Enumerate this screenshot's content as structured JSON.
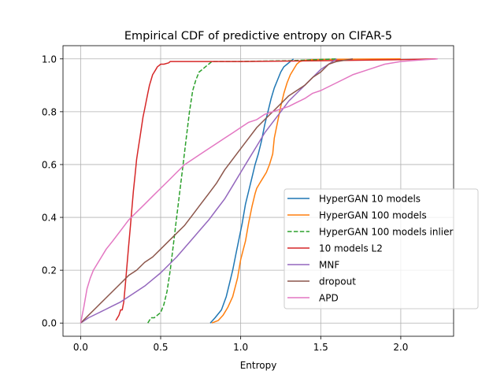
{
  "chart_data": {
    "type": "line",
    "title": "Empirical CDF of predictive entropy on CIFAR-5",
    "xlabel": "Entropy",
    "ylabel": "",
    "xlim": [
      -0.11,
      2.33
    ],
    "ylim": [
      -0.05,
      1.05
    ],
    "xticks": [
      0.0,
      0.5,
      1.0,
      1.5,
      2.0
    ],
    "xtick_labels": [
      "0.0",
      "0.5",
      "1.0",
      "1.5",
      "2.0"
    ],
    "yticks": [
      0.0,
      0.2,
      0.4,
      0.6,
      0.8,
      1.0
    ],
    "ytick_labels": [
      "0.0",
      "0.2",
      "0.4",
      "0.6",
      "0.8",
      "1.0"
    ],
    "grid": true,
    "legend_position": "lower-right",
    "series": [
      {
        "name": "HyperGAN 10 models",
        "color": "#1f77b4",
        "dash": "solid",
        "x": [
          0.81,
          0.84,
          0.88,
          0.91,
          0.93,
          0.95,
          0.97,
          0.99,
          1.01,
          1.03,
          1.05,
          1.07,
          1.09,
          1.11,
          1.13,
          1.15,
          1.17,
          1.19,
          1.21,
          1.23,
          1.25,
          1.27,
          1.29,
          1.31,
          1.33
        ],
        "y": [
          0.0,
          0.02,
          0.05,
          0.1,
          0.15,
          0.2,
          0.26,
          0.32,
          0.38,
          0.45,
          0.5,
          0.55,
          0.6,
          0.64,
          0.69,
          0.75,
          0.8,
          0.85,
          0.89,
          0.92,
          0.95,
          0.97,
          0.98,
          0.99,
          1.0
        ]
      },
      {
        "name": "HyperGAN 100 models",
        "color": "#ff7f0e",
        "dash": "solid",
        "x": [
          0.82,
          0.86,
          0.89,
          0.92,
          0.95,
          0.98,
          1.0,
          1.03,
          1.05,
          1.07,
          1.09,
          1.1,
          1.12,
          1.14,
          1.16,
          1.18,
          1.2,
          1.21,
          1.23,
          1.25,
          1.27,
          1.29,
          1.31,
          1.33,
          1.35,
          1.37,
          1.4,
          1.45,
          1.55,
          1.7,
          2.0
        ],
        "y": [
          0.0,
          0.01,
          0.03,
          0.06,
          0.1,
          0.17,
          0.24,
          0.31,
          0.38,
          0.44,
          0.49,
          0.51,
          0.53,
          0.55,
          0.57,
          0.6,
          0.64,
          0.7,
          0.76,
          0.82,
          0.87,
          0.91,
          0.94,
          0.96,
          0.98,
          0.99,
          0.995,
          0.997,
          0.998,
          0.999,
          1.0
        ]
      },
      {
        "name": "HyperGAN 100 models inlier",
        "color": "#2ca02c",
        "dash": "dashed",
        "x": [
          0.42,
          0.44,
          0.46,
          0.48,
          0.5,
          0.52,
          0.54,
          0.56,
          0.58,
          0.6,
          0.62,
          0.64,
          0.66,
          0.68,
          0.7,
          0.72,
          0.74,
          0.76,
          0.78,
          0.8,
          0.82,
          0.86,
          1.0,
          1.3,
          1.6
        ],
        "y": [
          0.0,
          0.02,
          0.02,
          0.03,
          0.04,
          0.07,
          0.12,
          0.2,
          0.3,
          0.4,
          0.5,
          0.6,
          0.7,
          0.8,
          0.88,
          0.92,
          0.95,
          0.96,
          0.97,
          0.98,
          0.99,
          0.99,
          0.99,
          0.993,
          1.0
        ]
      },
      {
        "name": "10 models L2",
        "color": "#d62728",
        "dash": "solid",
        "x": [
          0.22,
          0.24,
          0.25,
          0.26,
          0.27,
          0.28,
          0.29,
          0.3,
          0.31,
          0.32,
          0.33,
          0.34,
          0.35,
          0.36,
          0.37,
          0.38,
          0.39,
          0.4,
          0.41,
          0.42,
          0.43,
          0.44,
          0.45,
          0.46,
          0.47,
          0.48,
          0.49,
          0.5,
          0.52,
          0.55,
          0.56,
          0.58,
          0.7,
          1.0,
          1.5,
          2.0,
          2.22
        ],
        "y": [
          0.01,
          0.03,
          0.05,
          0.05,
          0.08,
          0.15,
          0.22,
          0.29,
          0.36,
          0.43,
          0.5,
          0.56,
          0.62,
          0.66,
          0.7,
          0.74,
          0.78,
          0.81,
          0.84,
          0.87,
          0.9,
          0.92,
          0.94,
          0.95,
          0.96,
          0.97,
          0.975,
          0.98,
          0.98,
          0.985,
          0.99,
          0.99,
          0.99,
          0.99,
          0.993,
          0.997,
          1.0
        ]
      },
      {
        "name": "MNF",
        "color": "#9467bd",
        "dash": "solid",
        "x": [
          0.0,
          0.05,
          0.1,
          0.15,
          0.2,
          0.25,
          0.3,
          0.35,
          0.4,
          0.45,
          0.5,
          0.55,
          0.6,
          0.65,
          0.7,
          0.75,
          0.8,
          0.85,
          0.9,
          0.95,
          1.0,
          1.05,
          1.1,
          1.15,
          1.2,
          1.25,
          1.3,
          1.35,
          1.4,
          1.45,
          1.5,
          1.55,
          1.6
        ],
        "y": [
          0.0,
          0.02,
          0.035,
          0.05,
          0.065,
          0.08,
          0.1,
          0.12,
          0.14,
          0.165,
          0.19,
          0.22,
          0.25,
          0.285,
          0.32,
          0.355,
          0.39,
          0.43,
          0.47,
          0.52,
          0.57,
          0.62,
          0.67,
          0.72,
          0.76,
          0.8,
          0.84,
          0.87,
          0.9,
          0.93,
          0.96,
          0.98,
          1.0
        ]
      },
      {
        "name": "dropout",
        "color": "#8c564b",
        "dash": "solid",
        "x": [
          0.0,
          0.05,
          0.1,
          0.15,
          0.2,
          0.25,
          0.3,
          0.35,
          0.4,
          0.45,
          0.5,
          0.55,
          0.6,
          0.65,
          0.7,
          0.75,
          0.8,
          0.85,
          0.9,
          0.95,
          1.0,
          1.05,
          1.1,
          1.15,
          1.2,
          1.25,
          1.3,
          1.35,
          1.4,
          1.45,
          1.5,
          1.55,
          1.6,
          1.65,
          1.7
        ],
        "y": [
          0.0,
          0.03,
          0.06,
          0.09,
          0.12,
          0.15,
          0.18,
          0.2,
          0.23,
          0.25,
          0.28,
          0.31,
          0.34,
          0.37,
          0.41,
          0.45,
          0.49,
          0.53,
          0.58,
          0.62,
          0.66,
          0.7,
          0.74,
          0.77,
          0.8,
          0.83,
          0.86,
          0.88,
          0.9,
          0.93,
          0.95,
          0.98,
          0.99,
          0.995,
          1.0
        ]
      },
      {
        "name": "APD",
        "color": "#e377c2",
        "dash": "solid",
        "x": [
          0.0,
          0.02,
          0.04,
          0.06,
          0.08,
          0.1,
          0.13,
          0.16,
          0.2,
          0.25,
          0.3,
          0.35,
          0.4,
          0.45,
          0.5,
          0.55,
          0.6,
          0.65,
          0.7,
          0.75,
          0.8,
          0.85,
          0.9,
          0.95,
          1.0,
          1.05,
          1.1,
          1.15,
          1.2,
          1.25,
          1.3,
          1.35,
          1.4,
          1.45,
          1.5,
          1.6,
          1.7,
          1.8,
          1.9,
          2.0,
          2.1,
          2.23
        ],
        "y": [
          0.0,
          0.06,
          0.13,
          0.17,
          0.2,
          0.22,
          0.25,
          0.28,
          0.31,
          0.35,
          0.39,
          0.42,
          0.45,
          0.48,
          0.51,
          0.54,
          0.57,
          0.6,
          0.62,
          0.64,
          0.66,
          0.68,
          0.7,
          0.72,
          0.74,
          0.76,
          0.77,
          0.79,
          0.8,
          0.81,
          0.82,
          0.835,
          0.85,
          0.87,
          0.88,
          0.91,
          0.94,
          0.96,
          0.98,
          0.99,
          0.995,
          1.0
        ]
      }
    ]
  }
}
